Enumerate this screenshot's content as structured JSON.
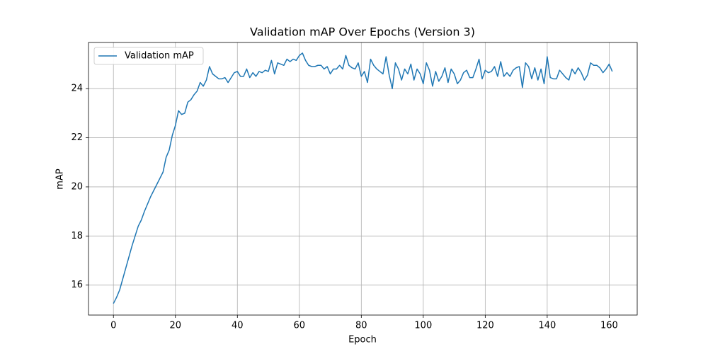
{
  "chart_data": {
    "type": "line",
    "title": "Validation mAP Over Epochs (Version 3)",
    "x_label": "Epoch",
    "y_label": "mAP",
    "x": [
      0,
      1,
      2,
      3,
      4,
      5,
      6,
      7,
      8,
      9,
      10,
      11,
      12,
      13,
      14,
      15,
      16,
      17,
      18,
      19,
      20,
      21,
      22,
      23,
      24,
      25,
      26,
      27,
      28,
      29,
      30,
      31,
      32,
      33,
      34,
      35,
      36,
      37,
      38,
      39,
      40,
      41,
      42,
      43,
      44,
      45,
      46,
      47,
      48,
      49,
      50,
      51,
      52,
      53,
      54,
      55,
      56,
      57,
      58,
      59,
      60,
      61,
      62,
      63,
      64,
      65,
      66,
      67,
      68,
      69,
      70,
      71,
      72,
      73,
      74,
      75,
      76,
      77,
      78,
      79,
      80,
      81,
      82,
      83,
      84,
      85,
      86,
      87,
      88,
      89,
      90,
      91,
      92,
      93,
      94,
      95,
      96,
      97,
      98,
      99,
      100,
      101,
      102,
      103,
      104,
      105,
      106,
      107,
      108,
      109,
      110,
      111,
      112,
      113,
      114,
      115,
      116,
      117,
      118,
      119,
      120,
      121,
      122,
      123,
      124,
      125,
      126,
      127,
      128,
      129,
      130,
      131,
      132,
      133,
      134,
      135,
      136,
      137,
      138,
      139,
      140,
      141,
      142,
      143,
      144,
      145,
      146,
      147,
      148,
      149,
      150,
      151,
      152,
      153,
      154,
      155,
      156,
      157,
      158,
      159,
      160,
      161
    ],
    "series": [
      {
        "name": "Validation mAP",
        "color": "#1f77b4",
        "values": [
          15.25,
          15.5,
          15.8,
          16.25,
          16.7,
          17.15,
          17.6,
          18.0,
          18.4,
          18.65,
          19.0,
          19.3,
          19.6,
          19.85,
          20.1,
          20.35,
          20.6,
          21.2,
          21.5,
          22.1,
          22.5,
          23.1,
          22.95,
          23.0,
          23.45,
          23.55,
          23.75,
          23.9,
          24.25,
          24.1,
          24.35,
          24.9,
          24.6,
          24.5,
          24.4,
          24.4,
          24.45,
          24.25,
          24.45,
          24.65,
          24.7,
          24.5,
          24.5,
          24.8,
          24.45,
          24.65,
          24.5,
          24.7,
          24.65,
          24.75,
          24.7,
          25.15,
          24.6,
          25.05,
          25.0,
          24.95,
          25.2,
          25.1,
          25.2,
          25.15,
          25.35,
          25.45,
          25.15,
          24.95,
          24.9,
          24.9,
          24.95,
          24.95,
          24.8,
          24.9,
          24.6,
          24.8,
          24.8,
          24.95,
          24.8,
          25.35,
          24.95,
          24.85,
          24.8,
          25.05,
          24.5,
          24.7,
          24.25,
          25.2,
          24.95,
          24.8,
          24.7,
          24.6,
          25.3,
          24.55,
          24.0,
          25.05,
          24.8,
          24.35,
          24.8,
          24.6,
          25.0,
          24.35,
          24.8,
          24.6,
          24.2,
          25.05,
          24.75,
          24.1,
          24.7,
          24.3,
          24.5,
          24.85,
          24.25,
          24.8,
          24.6,
          24.2,
          24.35,
          24.65,
          24.75,
          24.45,
          24.45,
          24.8,
          25.2,
          24.4,
          24.75,
          24.65,
          24.7,
          24.9,
          24.5,
          25.1,
          24.5,
          24.65,
          24.5,
          24.75,
          24.85,
          24.9,
          24.05,
          25.05,
          24.9,
          24.4,
          24.85,
          24.35,
          24.8,
          24.2,
          25.3,
          24.45,
          24.4,
          24.4,
          24.75,
          24.6,
          24.45,
          24.35,
          24.8,
          24.6,
          24.85,
          24.65,
          24.35,
          24.55,
          25.05,
          24.95,
          24.95,
          24.85,
          24.65,
          24.8,
          25.0,
          24.7
        ]
      }
    ],
    "xlim": [
      -8.05,
      169.05
    ],
    "xticks": [
      0,
      20,
      40,
      60,
      80,
      100,
      120,
      140,
      160
    ],
    "ylim": [
      14.78,
      25.88
    ],
    "yticks": [
      16,
      18,
      20,
      22,
      24
    ],
    "grid": true,
    "legend": "upper left"
  }
}
